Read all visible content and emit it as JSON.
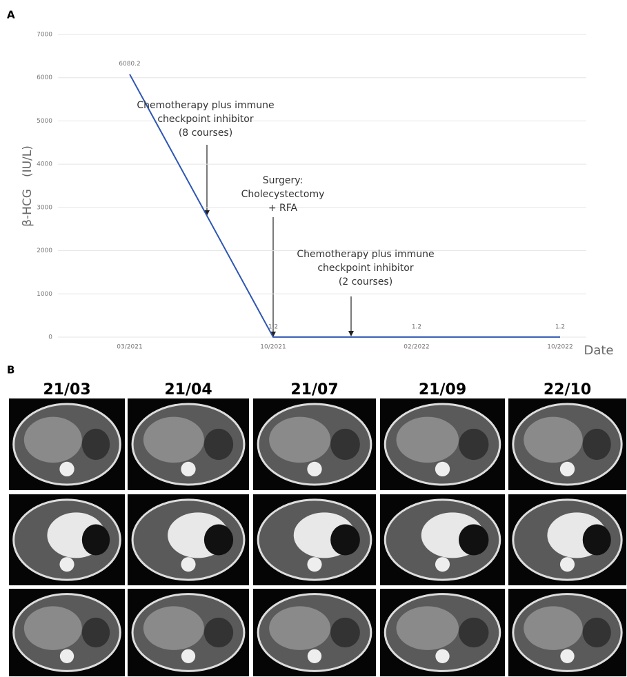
{
  "panel_labels": [
    "A",
    "B"
  ],
  "chart_data": {
    "type": "line",
    "categories": [
      "03/2021",
      "10/2021",
      "02/2022",
      "10/2022"
    ],
    "values": [
      6080.2,
      1.2,
      1.2,
      1.2
    ],
    "color": "#2e56b4",
    "ylim": [
      0,
      7000
    ],
    "yticks": [
      0,
      1000,
      2000,
      3000,
      4000,
      5000,
      6000,
      7000
    ],
    "grid": true,
    "y_label": "β-HCG　(IU/L)",
    "x_label": "Date",
    "annotations": [
      [
        "Chemotherapy plus immune",
        "checkpoint inhibitor",
        "(8 courses)"
      ],
      [
        "Surgery:",
        "Cholecystectomy",
        "+ RFA"
      ],
      [
        "Chemotherapy plus immune",
        "checkpoint inhibitor",
        "(2 courses)"
      ]
    ]
  },
  "scans": {
    "column_labels": [
      "21/03",
      "21/04",
      "21/07",
      "21/09",
      "22/10"
    ]
  }
}
